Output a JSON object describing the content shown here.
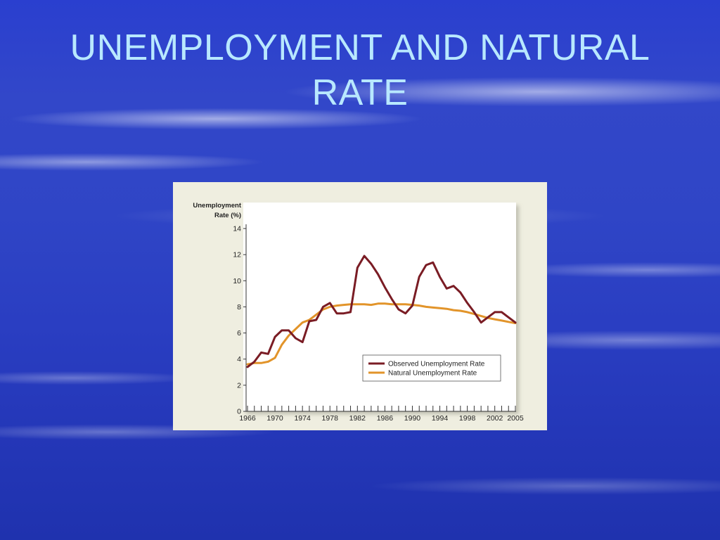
{
  "slide": {
    "title_line1": "UNEMPLOYMENT AND NATURAL",
    "title_line2": "RATE"
  },
  "colors": {
    "observed": "#7a1c24",
    "natural": "#e2942a",
    "title": "#b8e8ff"
  },
  "chart_data": {
    "type": "line",
    "title": "",
    "xlabel": "",
    "ylabel": "Unemployment Rate (%)",
    "ylabel_lines": [
      "Unemployment",
      "Rate (%)"
    ],
    "xlim": [
      1966,
      2005
    ],
    "ylim": [
      0,
      14
    ],
    "yticks": [
      0,
      2,
      4,
      6,
      8,
      10,
      12,
      14
    ],
    "xtick_labels": [
      "1966",
      "1970",
      "1974",
      "1978",
      "1982",
      "1986",
      "1990",
      "1994",
      "1998",
      "2002",
      "2005"
    ],
    "legend_position": "bottom-right",
    "grid": false,
    "series": [
      {
        "name": "Observed Unemployment Rate",
        "color": "#7a1c24",
        "x": [
          1966,
          1967,
          1968,
          1969,
          1970,
          1971,
          1972,
          1973,
          1974,
          1975,
          1976,
          1977,
          1978,
          1979,
          1980,
          1981,
          1982,
          1983,
          1984,
          1985,
          1986,
          1987,
          1988,
          1989,
          1990,
          1991,
          1992,
          1993,
          1994,
          1995,
          1996,
          1997,
          1998,
          1999,
          2000,
          2001,
          2002,
          2003,
          2004,
          2005
        ],
        "y": [
          3.4,
          3.8,
          4.5,
          4.4,
          5.7,
          6.2,
          6.2,
          5.6,
          5.3,
          6.9,
          7.0,
          8.0,
          8.3,
          7.5,
          7.5,
          7.6,
          11.0,
          11.9,
          11.3,
          10.5,
          9.5,
          8.6,
          7.8,
          7.5,
          8.1,
          10.3,
          11.2,
          11.4,
          10.3,
          9.4,
          9.6,
          9.1,
          8.3,
          7.6,
          6.8,
          7.2,
          7.6,
          7.6,
          7.2,
          6.8
        ]
      },
      {
        "name": "Natural Unemployment Rate",
        "color": "#e2942a",
        "x": [
          1966,
          1967,
          1968,
          1969,
          1970,
          1971,
          1972,
          1973,
          1974,
          1975,
          1976,
          1977,
          1978,
          1979,
          1980,
          1981,
          1982,
          1983,
          1984,
          1985,
          1986,
          1987,
          1988,
          1989,
          1990,
          1991,
          1992,
          1993,
          1994,
          1995,
          1996,
          1997,
          1998,
          1999,
          2000,
          2001,
          2002,
          2003,
          2004,
          2005
        ],
        "y": [
          3.6,
          3.7,
          3.7,
          3.8,
          4.1,
          5.1,
          5.8,
          6.3,
          6.8,
          7.0,
          7.4,
          7.8,
          8.0,
          8.1,
          8.15,
          8.2,
          8.2,
          8.2,
          8.15,
          8.25,
          8.25,
          8.2,
          8.2,
          8.2,
          8.15,
          8.1,
          8.0,
          7.95,
          7.9,
          7.85,
          7.75,
          7.7,
          7.6,
          7.45,
          7.3,
          7.15,
          7.05,
          6.95,
          6.85,
          6.75
        ]
      }
    ]
  }
}
